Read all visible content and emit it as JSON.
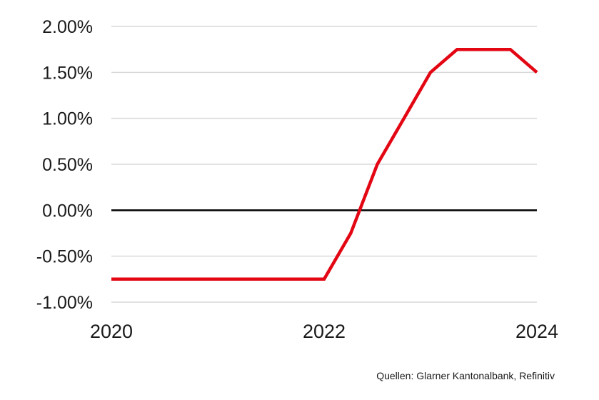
{
  "chart_data": {
    "type": "line",
    "title": "",
    "xlabel": "",
    "ylabel": "",
    "xlim": [
      2020,
      2024
    ],
    "ylim": [
      -1.0,
      2.0
    ],
    "x_ticks": [
      2020,
      2022,
      2024
    ],
    "x_tick_labels": [
      "2020",
      "2022",
      "2024"
    ],
    "y_ticks": [
      -1.0,
      -0.5,
      0.0,
      0.5,
      1.0,
      1.5,
      2.0
    ],
    "y_tick_labels": [
      "-1.00%",
      "-0.50%",
      "0.00%",
      "0.50%",
      "1.00%",
      "1.50%",
      "2.00%"
    ],
    "grid": true,
    "zero_line": true,
    "series": [
      {
        "color": "#e30613",
        "points": [
          [
            2020.0,
            -0.75
          ],
          [
            2022.0,
            -0.75
          ],
          [
            2022.25,
            -0.25
          ],
          [
            2022.5,
            0.5
          ],
          [
            2022.75,
            1.0
          ],
          [
            2023.0,
            1.5
          ],
          [
            2023.25,
            1.75
          ],
          [
            2023.75,
            1.75
          ],
          [
            2024.0,
            1.5
          ]
        ]
      }
    ]
  },
  "source_note": "Quellen: Glarner Kantonalbank, Refinitiv"
}
